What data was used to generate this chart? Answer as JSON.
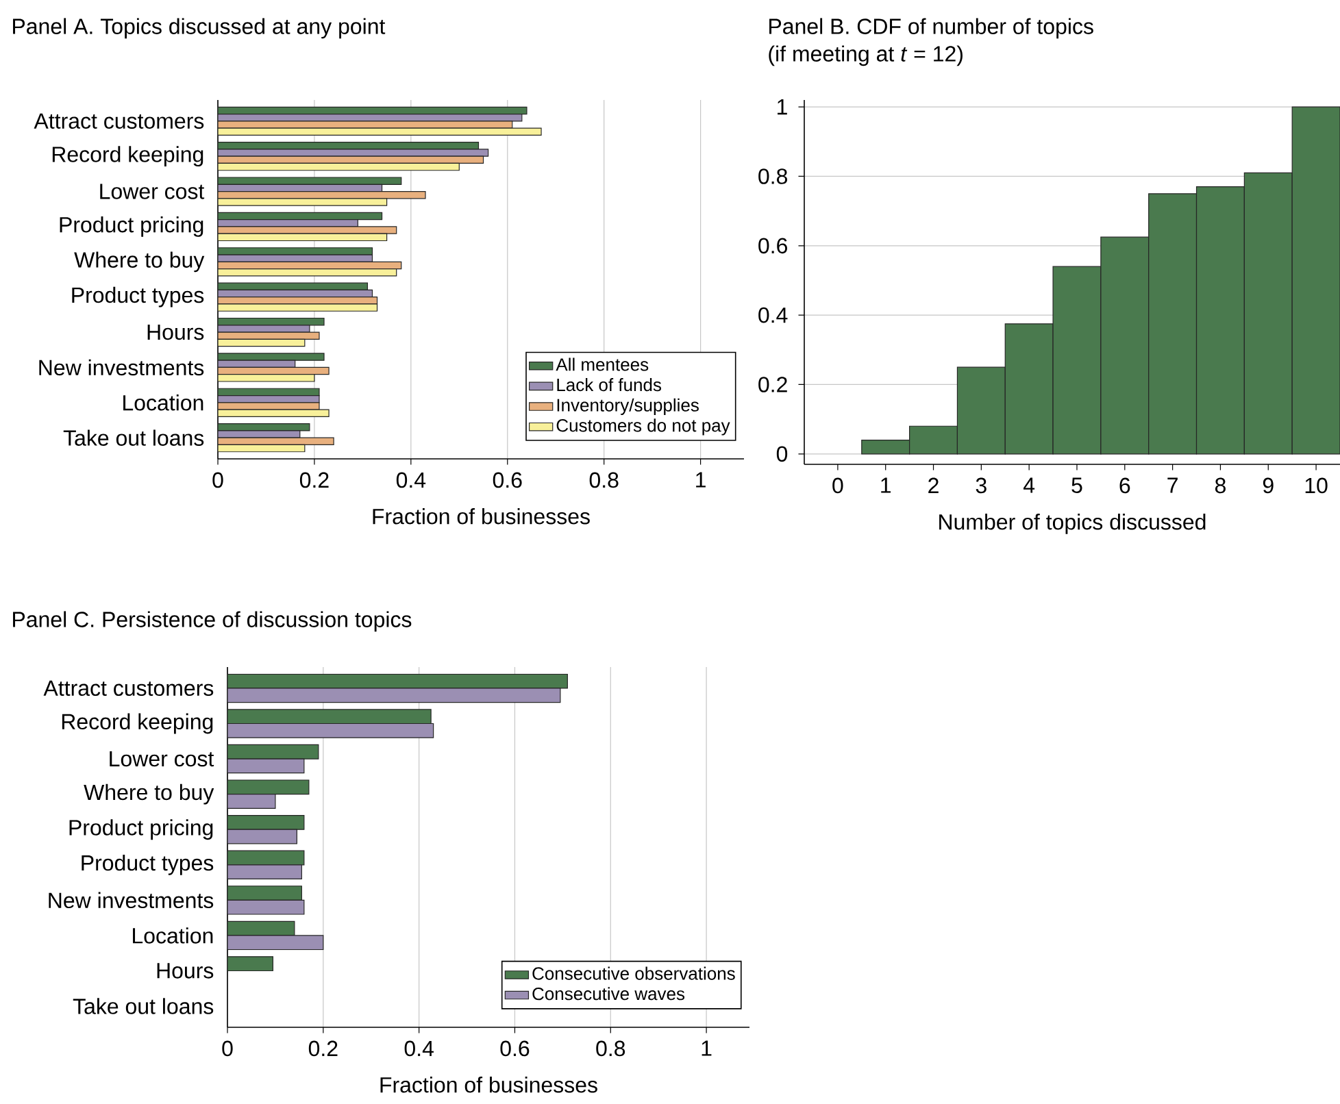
{
  "chart_data": [
    {
      "type": "bar",
      "orientation": "horizontal",
      "title": "Panel A. Topics discussed at any point",
      "xlabel": "Fraction of businesses",
      "categories": [
        "Attract customers",
        "Record keeping",
        "Lower cost",
        "Product pricing",
        "Where to buy",
        "Product types",
        "Hours",
        "New investments",
        "Location",
        "Take out loans"
      ],
      "series": [
        {
          "name": "All mentees",
          "color": "#4a7a4e",
          "values": [
            0.64,
            0.54,
            0.38,
            0.34,
            0.32,
            0.31,
            0.22,
            0.22,
            0.21,
            0.19
          ]
        },
        {
          "name": "Lack of funds",
          "color": "#9b8fb3",
          "values": [
            0.63,
            0.56,
            0.34,
            0.29,
            0.32,
            0.32,
            0.19,
            0.16,
            0.21,
            0.17
          ]
        },
        {
          "name": "Inventory/supplies",
          "color": "#e8b07e",
          "values": [
            0.61,
            0.55,
            0.43,
            0.37,
            0.38,
            0.33,
            0.21,
            0.23,
            0.21,
            0.24
          ]
        },
        {
          "name": "Customers do not pay",
          "color": "#f8f09a",
          "values": [
            0.67,
            0.5,
            0.35,
            0.35,
            0.37,
            0.33,
            0.18,
            0.2,
            0.23,
            0.18
          ]
        }
      ],
      "xlim": [
        0,
        1.09
      ],
      "xticks": [
        0,
        0.2,
        0.4,
        0.6,
        0.8,
        1
      ],
      "grid": "x",
      "legend": "bottom right"
    },
    {
      "type": "bar",
      "title": "Panel B. CDF of number of topics",
      "subtitle": "(if meeting at *t* = 12)",
      "xlabel": "Number of topics discussed",
      "x": [
        1,
        2,
        3,
        4,
        5,
        6,
        7,
        8,
        9,
        10
      ],
      "series": [
        {
          "color": "#4a7a4e",
          "values": [
            0.04,
            0.08,
            0.25,
            0.375,
            0.54,
            0.625,
            0.75,
            0.77,
            0.81,
            1.0
          ]
        }
      ],
      "xlim": [
        -0.7,
        10.5
      ],
      "xticks": [
        0,
        1,
        2,
        3,
        4,
        5,
        6,
        7,
        8,
        9,
        10
      ],
      "ylim": [
        -0.03,
        1.02
      ],
      "yticks": [
        0,
        0.2,
        0.4,
        0.6,
        0.8,
        1
      ],
      "grid": "y"
    },
    {
      "type": "bar",
      "orientation": "horizontal",
      "title": "Panel C. Persistence of discussion topics",
      "xlabel": "Fraction of businesses",
      "categories": [
        "Attract customers",
        "Record keeping",
        "Lower cost",
        "Where to buy",
        "Product pricing",
        "Product types",
        "New investments",
        "Location",
        "Hours",
        "Take out loans"
      ],
      "series": [
        {
          "name": "Consecutive observations",
          "color": "#4a7a4e",
          "values": [
            0.71,
            0.425,
            0.19,
            0.17,
            0.16,
            0.16,
            0.155,
            0.14,
            0.095,
            null
          ]
        },
        {
          "name": "Consecutive waves",
          "color": "#9b8fb3",
          "values": [
            0.695,
            0.43,
            0.16,
            0.1,
            0.145,
            0.155,
            0.16,
            0.2,
            null,
            null
          ]
        }
      ],
      "xlim": [
        0,
        1.09
      ],
      "xticks": [
        0,
        0.2,
        0.4,
        0.6,
        0.8,
        1
      ],
      "grid": "x",
      "legend": "bottom right"
    }
  ]
}
